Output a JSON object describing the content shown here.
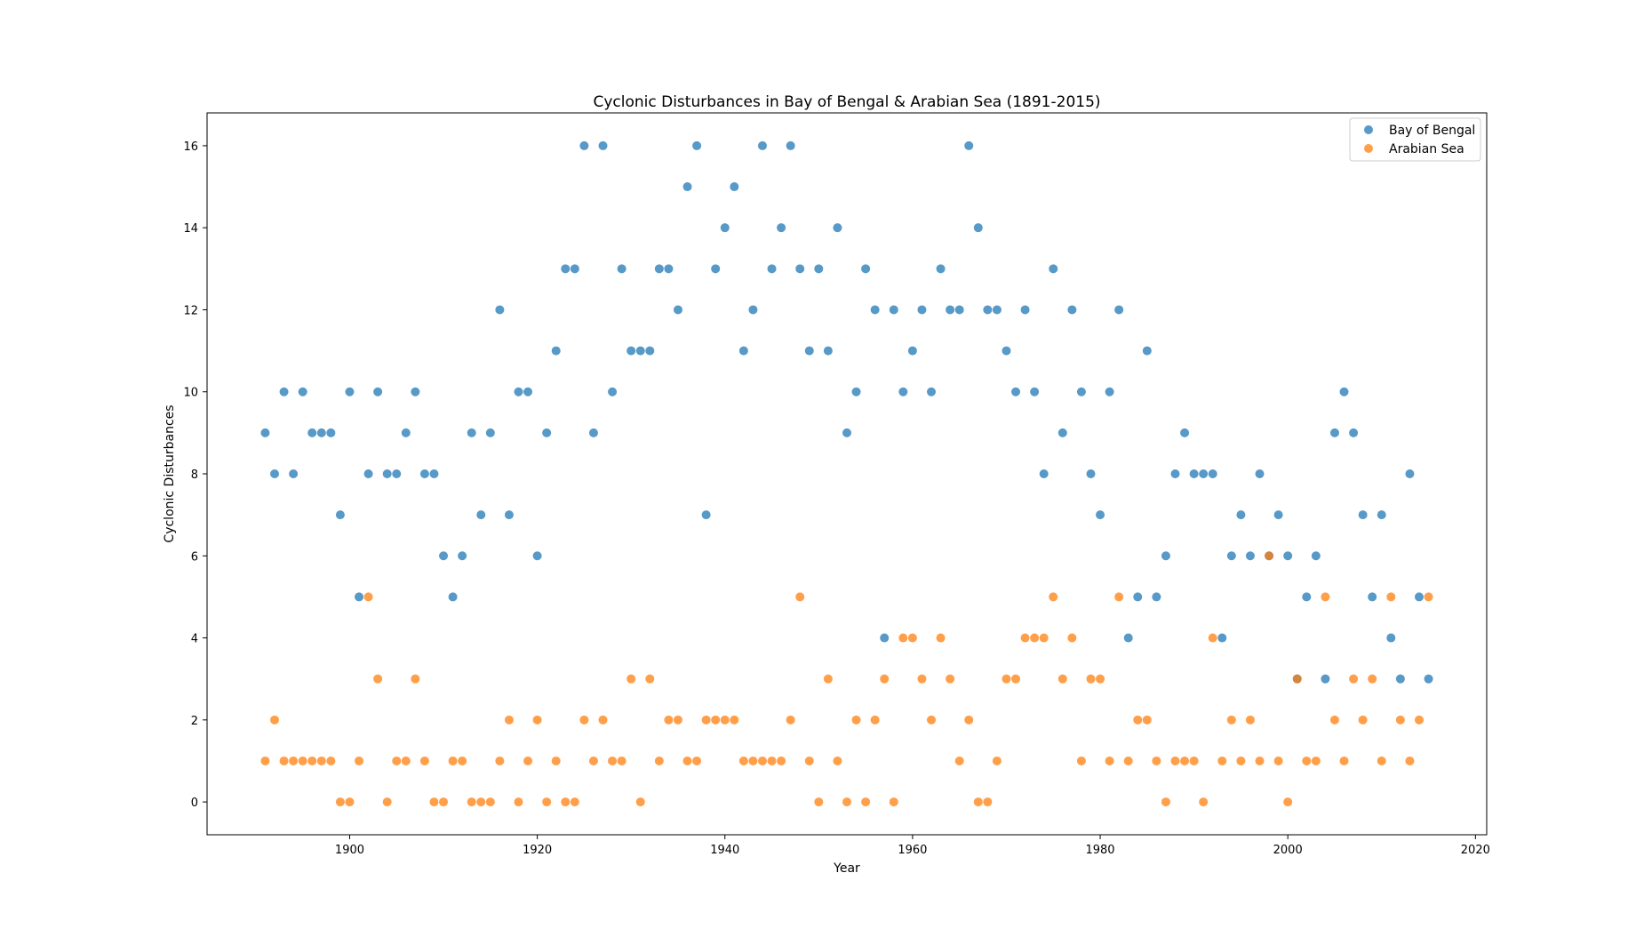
{
  "chart_data": {
    "type": "scatter",
    "title": "Cyclonic Disturbances in Bay of Bengal & Arabian Sea (1891-2015)",
    "xlabel": "Year",
    "ylabel": "Cyclonic Disturbances",
    "xlim": [
      1884.8,
      2021.2
    ],
    "ylim": [
      -0.8,
      16.8
    ],
    "xticks": [
      1900,
      1920,
      1940,
      1960,
      1980,
      2000,
      2020
    ],
    "yticks": [
      0,
      2,
      4,
      6,
      8,
      10,
      12,
      14,
      16
    ],
    "grid": false,
    "legend_position": "top-right",
    "x_start_year": 1891,
    "series": [
      {
        "name": "Bay of Bengal",
        "color": "#1f77b4",
        "values": [
          9,
          8,
          10,
          8,
          10,
          9,
          9,
          9,
          7,
          10,
          5,
          8,
          10,
          8,
          8,
          9,
          10,
          8,
          8,
          6,
          5,
          6,
          9,
          7,
          9,
          12,
          7,
          10,
          10,
          6,
          9,
          11,
          13,
          13,
          16,
          9,
          16,
          10,
          13,
          11,
          11,
          11,
          13,
          13,
          12,
          15,
          16,
          7,
          13,
          14,
          15,
          11,
          12,
          16,
          13,
          14,
          16,
          13,
          11,
          13,
          11,
          14,
          9,
          10,
          13,
          12,
          4,
          12,
          10,
          11,
          12,
          10,
          13,
          12,
          12,
          16,
          14,
          12,
          12,
          11,
          10,
          12,
          10,
          8,
          13,
          9,
          12,
          10,
          8,
          7,
          10,
          12,
          4,
          5,
          11,
          5,
          6,
          8,
          9,
          8,
          8,
          8,
          4,
          6,
          7,
          6,
          8,
          6,
          7,
          6,
          3,
          5,
          6,
          3,
          9,
          10,
          9,
          7,
          5,
          7,
          4,
          3,
          8,
          5,
          3
        ]
      },
      {
        "name": "Arabian Sea",
        "color": "#ff7f0e",
        "values": [
          1,
          2,
          1,
          1,
          1,
          1,
          1,
          1,
          0,
          0,
          1,
          5,
          3,
          0,
          1,
          1,
          3,
          1,
          0,
          0,
          1,
          1,
          0,
          0,
          0,
          1,
          2,
          0,
          1,
          2,
          0,
          1,
          0,
          0,
          2,
          1,
          2,
          1,
          1,
          3,
          0,
          3,
          1,
          2,
          2,
          1,
          1,
          2,
          2,
          2,
          2,
          1,
          1,
          1,
          1,
          1,
          2,
          5,
          1,
          0,
          3,
          1,
          0,
          2,
          0,
          2,
          3,
          0,
          4,
          4,
          3,
          2,
          4,
          3,
          1,
          2,
          0,
          0,
          1,
          3,
          3,
          4,
          4,
          4,
          5,
          3,
          4,
          1,
          3,
          3,
          1,
          5,
          1,
          2,
          2,
          1,
          0,
          1,
          1,
          1,
          0,
          4,
          1,
          2,
          1,
          2,
          1,
          6,
          1,
          0,
          3,
          1,
          1,
          5,
          2,
          1,
          3,
          2,
          3,
          1,
          5,
          2,
          1,
          2,
          5
        ]
      }
    ]
  }
}
